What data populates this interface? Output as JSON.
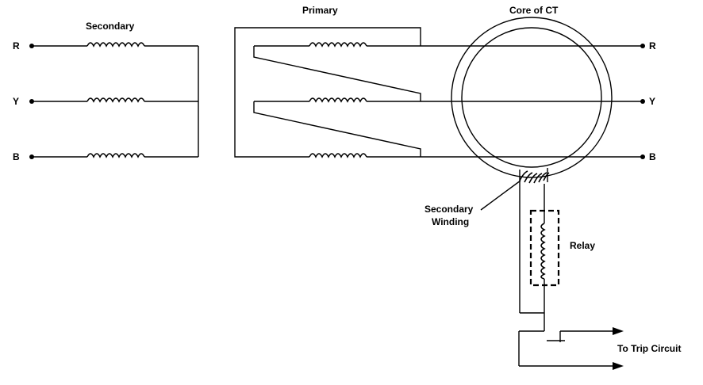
{
  "labels": {
    "secondary": "Secondary",
    "primary": "Primary",
    "core": "Core of CT",
    "secondary_winding_line1": "Secondary",
    "secondary_winding_line2": "Winding",
    "relay": "Relay",
    "trip": "To Trip Circuit"
  },
  "phases": {
    "r": "R",
    "y": "Y",
    "b": "B"
  }
}
